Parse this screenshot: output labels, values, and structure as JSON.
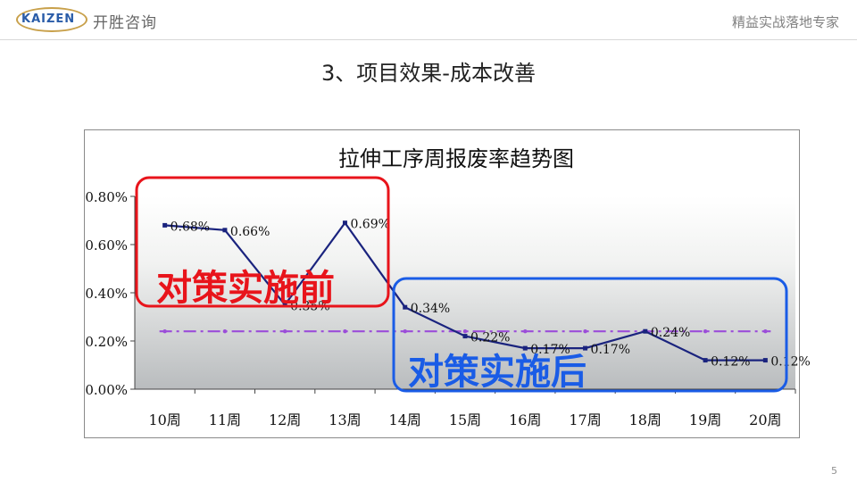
{
  "header": {
    "logo_text": "KAIZEN",
    "company": "开胜咨询",
    "tagline": "精益实战落地专家"
  },
  "slide": {
    "title": "3、项目效果-成本改善",
    "page_number": "5"
  },
  "colors": {
    "line": "#1a237e",
    "target_line": "#9b4dd9",
    "before_box": "#e8141b",
    "after_box": "#1a5ce6",
    "before_text": "#e8141b",
    "after_text": "#1a5ce6"
  },
  "chart_data": {
    "type": "line",
    "title": "拉伸工序周报废率趋势图",
    "categories": [
      "10周",
      "11周",
      "12周",
      "13周",
      "14周",
      "15周",
      "16周",
      "17周",
      "18周",
      "19周",
      "20周"
    ],
    "series": [
      {
        "values": [
          0.68,
          0.66,
          0.35,
          0.69,
          0.34,
          0.22,
          0.17,
          0.17,
          0.24,
          0.12,
          0.12
        ],
        "labels": [
          "0.68%",
          "0.66%",
          "0.35%",
          "0.69%",
          "0.34%",
          "0.22%",
          "0.17%",
          "0.17%",
          "0.24%",
          "0.12%",
          "0.12%"
        ]
      }
    ],
    "target_value": 0.24,
    "y_ticks": [
      "0.00%",
      "0.20%",
      "0.40%",
      "0.60%",
      "0.80%"
    ],
    "ylim": [
      0,
      0.8
    ],
    "annotations": {
      "before": "对策实施前",
      "after": "对策实施后"
    }
  }
}
